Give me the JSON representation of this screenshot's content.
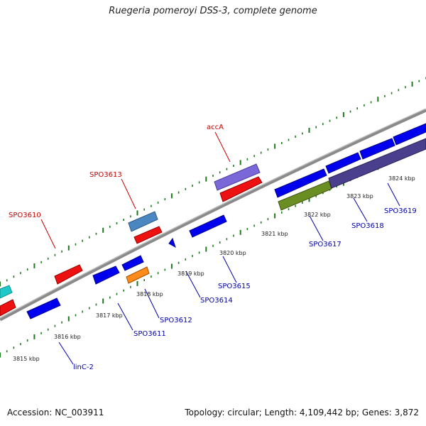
{
  "header": {
    "title": "Ruegeria pomeroyi DSS-3, complete genome"
  },
  "footer": {
    "accession": "Accession: NC_003911",
    "summary": "Topology: circular; Length: 4,109,442 bp; Genes: 3,872"
  },
  "colors": {
    "backbone": "#8a8a8a",
    "tick": "#1f7a1f",
    "forward_label": "#cc0000",
    "reverse_label": "#0000aa",
    "kbp_label": "#222222"
  },
  "scale": {
    "unit": "kbp",
    "labels": [
      "3815 kbp",
      "3816 kbp",
      "3817 kbp",
      "3818 kbp",
      "3819 kbp",
      "3820 kbp",
      "3821 kbp",
      "3822 kbp",
      "3823 kbp",
      "3824 kbp"
    ]
  },
  "forward_labels": [
    {
      "id": "spo3610",
      "text": "SPO3610"
    },
    {
      "id": "spo3613",
      "text": "SPO3613"
    },
    {
      "id": "acca",
      "text": "accA"
    }
  ],
  "reverse_labels": [
    {
      "id": "linc2",
      "text": "linC-2"
    },
    {
      "id": "spo3611",
      "text": "SPO3611"
    },
    {
      "id": "spo3612",
      "text": "SPO3612"
    },
    {
      "id": "spo3614",
      "text": "SPO3614"
    },
    {
      "id": "spo3615",
      "text": "SPO3615"
    },
    {
      "id": "spo3617",
      "text": "SPO3617"
    },
    {
      "id": "spo3618",
      "text": "SPO3618"
    },
    {
      "id": "spo3619",
      "text": "SPO3619"
    }
  ]
}
